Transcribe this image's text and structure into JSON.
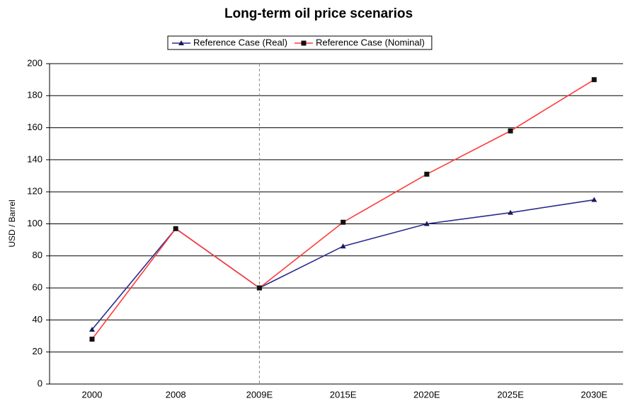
{
  "chart_data": {
    "type": "line",
    "title": "Long-term oil price scenarios",
    "y_label": "USD / Barrel",
    "categories": [
      "2000",
      "2008",
      "2009E",
      "2015E",
      "2020E",
      "2025E",
      "2030E"
    ],
    "series": [
      {
        "name": "Reference Case (Real)",
        "color": "#2b2b8c",
        "values": [
          34,
          97,
          60,
          86,
          100,
          107,
          115
        ]
      },
      {
        "name": "Reference Case (Nominal)",
        "color": "#ff3b3b",
        "values": [
          28,
          97,
          60,
          101,
          131,
          158,
          190
        ]
      }
    ],
    "ylim": [
      0,
      200
    ],
    "yticks": [
      0,
      20,
      40,
      60,
      80,
      100,
      120,
      140,
      160,
      180,
      200
    ],
    "grid": true
  }
}
